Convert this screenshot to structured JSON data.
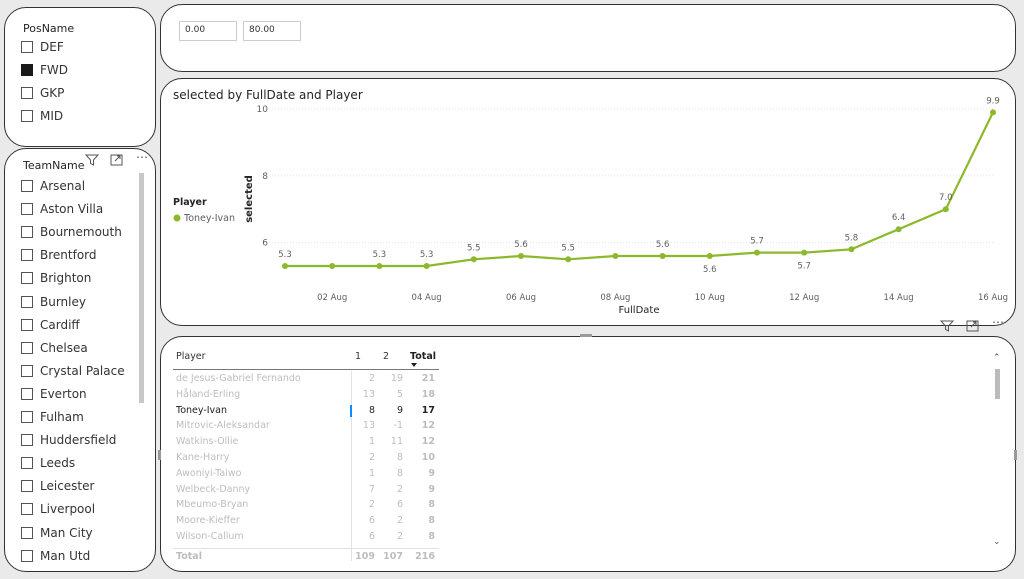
{
  "pos_slicer": {
    "title": "PosName",
    "items": [
      {
        "label": "DEF",
        "checked": false
      },
      {
        "label": "FWD",
        "checked": true
      },
      {
        "label": "GKP",
        "checked": false
      },
      {
        "label": "MID",
        "checked": false
      }
    ]
  },
  "team_slicer": {
    "title": "TeamName",
    "items": [
      "Arsenal",
      "Aston Villa",
      "Bournemouth",
      "Brentford",
      "Brighton",
      "Burnley",
      "Cardiff",
      "Chelsea",
      "Crystal Palace",
      "Everton",
      "Fulham",
      "Huddersfield",
      "Leeds",
      "Leicester",
      "Liverpool",
      "Man City",
      "Man Utd"
    ]
  },
  "range_slicer": {
    "min": "0.00",
    "max": "80.00"
  },
  "chart_data": {
    "type": "line",
    "title": "selected by FullDate and Player",
    "xlabel": "FullDate",
    "ylabel": "selected",
    "legend_title": "Player",
    "legend_position": "left",
    "y_ticks": [
      "6",
      "8",
      "10"
    ],
    "ylim": [
      5,
      10
    ],
    "x_ticks": [
      "02 Aug",
      "04 Aug",
      "06 Aug",
      "08 Aug",
      "10 Aug",
      "12 Aug",
      "14 Aug",
      "16 Aug"
    ],
    "series": [
      {
        "name": "Toney-Ivan",
        "color": "#8cb82c",
        "x": [
          "01 Aug",
          "02 Aug",
          "03 Aug",
          "04 Aug",
          "05 Aug",
          "06 Aug",
          "07 Aug",
          "08 Aug",
          "09 Aug",
          "10 Aug",
          "11 Aug",
          "12 Aug",
          "13 Aug",
          "14 Aug",
          "15 Aug",
          "16 Aug"
        ],
        "values": [
          5.3,
          5.3,
          5.3,
          5.3,
          5.5,
          5.6,
          5.5,
          5.6,
          5.6,
          5.6,
          5.7,
          5.7,
          5.8,
          6.4,
          7.0,
          9.9
        ],
        "labels": [
          "5.3",
          "",
          "5.3",
          "5.3",
          "5.5",
          "5.6",
          "5.5",
          "",
          "5.6",
          "5.6",
          "5.7",
          "5.7",
          "5.8",
          "6.4",
          "7.0",
          "9.9"
        ]
      }
    ]
  },
  "matrix": {
    "headers": {
      "player": "Player",
      "c1": "1",
      "c2": "2",
      "total": "Total"
    },
    "rows": [
      {
        "player": "de Jesus-Gabriel Fernando",
        "c1": "2",
        "c2": "19",
        "total": "21",
        "selected": false
      },
      {
        "player": "Håland-Erling",
        "c1": "13",
        "c2": "5",
        "total": "18",
        "selected": false
      },
      {
        "player": "Toney-Ivan",
        "c1": "8",
        "c2": "9",
        "total": "17",
        "selected": true
      },
      {
        "player": "Mitrovic-Aleksandar",
        "c1": "13",
        "c2": "-1",
        "total": "12",
        "selected": false
      },
      {
        "player": "Watkins-Ollie",
        "c1": "1",
        "c2": "11",
        "total": "12",
        "selected": false
      },
      {
        "player": "Kane-Harry",
        "c1": "2",
        "c2": "8",
        "total": "10",
        "selected": false
      },
      {
        "player": "Awoniyi-Taiwo",
        "c1": "1",
        "c2": "8",
        "total": "9",
        "selected": false
      },
      {
        "player": "Welbeck-Danny",
        "c1": "7",
        "c2": "2",
        "total": "9",
        "selected": false
      },
      {
        "player": "Mbeumo-Bryan",
        "c1": "2",
        "c2": "6",
        "total": "8",
        "selected": false
      },
      {
        "player": "Moore-Kieffer",
        "c1": "6",
        "c2": "2",
        "total": "8",
        "selected": false
      },
      {
        "player": "Wilson-Callum",
        "c1": "6",
        "c2": "2",
        "total": "8",
        "selected": false
      }
    ],
    "total_row": {
      "player": "Total",
      "c1": "109",
      "c2": "107",
      "total": "216"
    }
  }
}
